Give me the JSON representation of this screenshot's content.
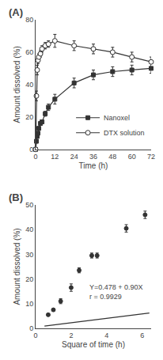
{
  "chart_data": [
    {
      "type": "line",
      "title": "(A)",
      "xlabel": "Time (h)",
      "ylabel": "Amount dissolved (%)",
      "xlim": [
        0,
        72
      ],
      "ylim": [
        0,
        80
      ],
      "xticks": [
        0,
        12,
        24,
        36,
        48,
        60,
        72
      ],
      "yticks": [
        0,
        20,
        40,
        60,
        80
      ],
      "grid": false,
      "legend": "lower right",
      "series": [
        {
          "name": "Nanoxel",
          "color": "#333333",
          "marker": "square",
          "line_style": "solid",
          "x": [
            0,
            0.5,
            1,
            1.5,
            2,
            3,
            4,
            6,
            8,
            12,
            24,
            36,
            48,
            60,
            72
          ],
          "values": [
            0,
            5,
            8,
            10,
            13,
            16,
            17,
            22,
            26,
            31,
            41,
            46,
            48,
            49,
            50
          ],
          "errors": [
            0,
            1,
            1,
            1,
            1,
            1,
            1,
            1.5,
            2,
            3,
            3,
            3,
            3,
            3,
            3
          ]
        },
        {
          "name": "DTX solution",
          "color": "#333333",
          "marker": "open_circle",
          "line_style": "solid",
          "x": [
            0,
            0.5,
            1,
            1.5,
            2,
            3,
            4,
            6,
            8,
            12,
            24,
            36,
            48,
            60,
            72
          ],
          "values": [
            0,
            33,
            49,
            55,
            57,
            59,
            62,
            64,
            65,
            67,
            64,
            62,
            60,
            57,
            54
          ],
          "errors": [
            0,
            3,
            3,
            2,
            2,
            2,
            2,
            2,
            2,
            4,
            3,
            3,
            3,
            3,
            3
          ]
        }
      ]
    },
    {
      "type": "scatter",
      "title": "(B)",
      "xlabel": "Square of time (h)",
      "ylabel": "Amount dissolved (%)",
      "xlim": [
        0,
        6.5
      ],
      "ylim": [
        0,
        50
      ],
      "xticks": [
        0,
        2,
        4,
        6
      ],
      "yticks": [
        0,
        10,
        20,
        30,
        40,
        50
      ],
      "grid": false,
      "annotations": [
        "Y=0.478 + 0.90X",
        "r = 0.9929"
      ],
      "series": [
        {
          "type": "line",
          "color": "#333333",
          "line_style": "solid",
          "x": [
            0.5,
            6.4
          ],
          "values": [
            0.928,
            6.238
          ]
        },
        {
          "type": "scatter",
          "color": "#333333",
          "marker": "circle",
          "x": [
            0.71,
            1.0,
            1.41,
            2.0,
            2.45,
            3.16,
            3.46,
            5.1,
            6.16
          ],
          "values": [
            5.5,
            7.5,
            11.0,
            16.5,
            23.5,
            29.5,
            29.5,
            40.5,
            46.0
          ],
          "errors": [
            0.4,
            0.4,
            1.0,
            1.5,
            1.0,
            1.0,
            1.0,
            1.5,
            1.5
          ]
        }
      ]
    }
  ]
}
